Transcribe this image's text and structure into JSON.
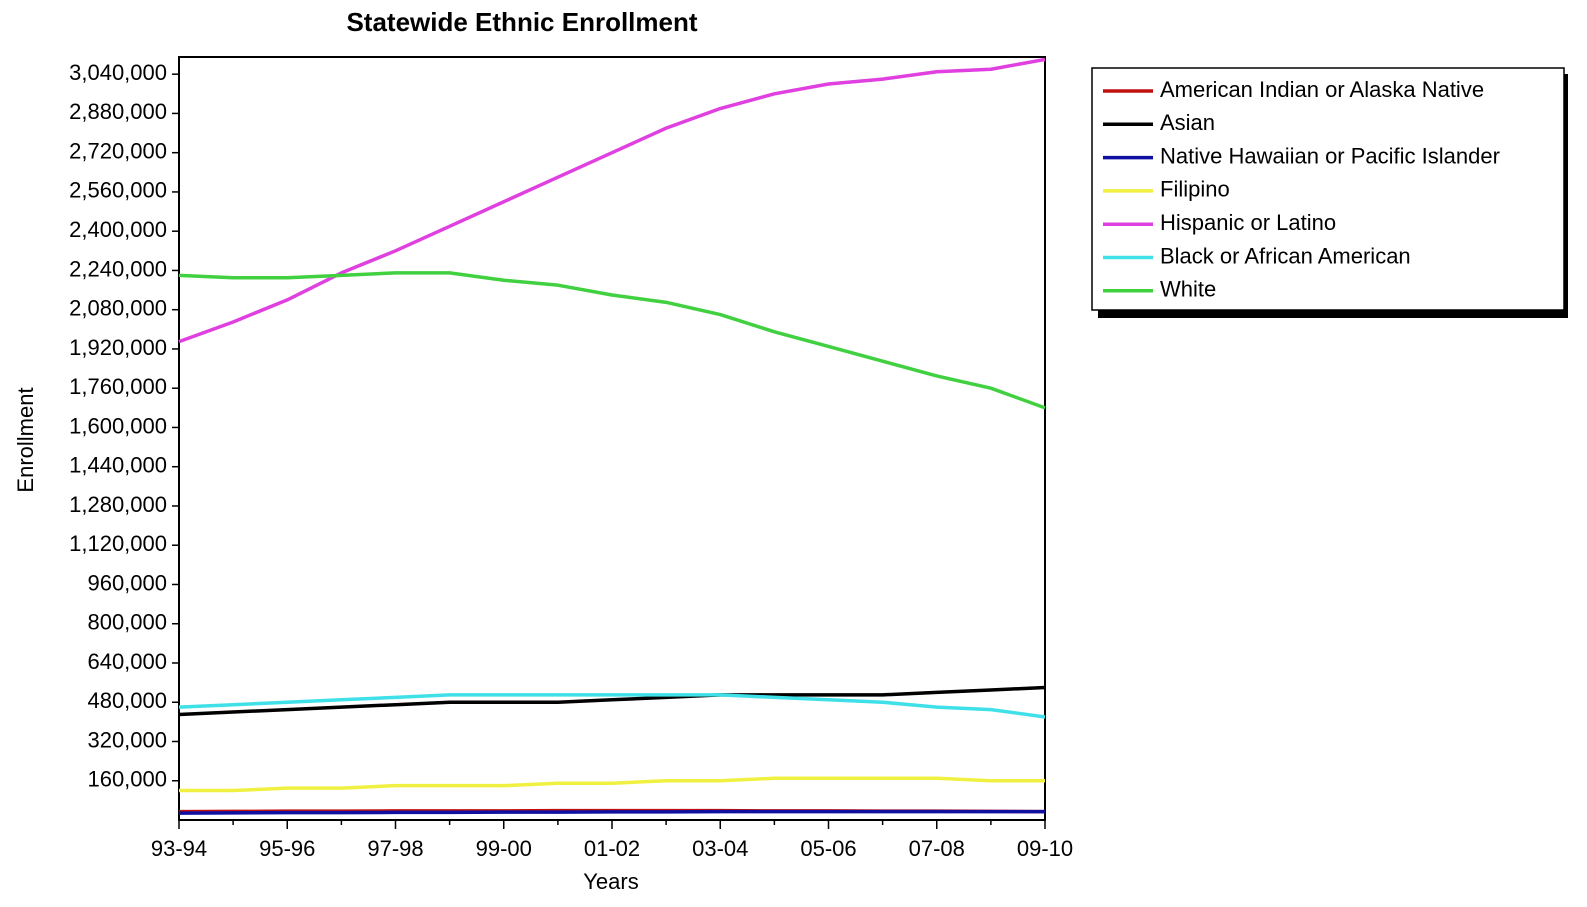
{
  "chart_data": {
    "type": "line",
    "title": "Statewide Ethnic Enrollment",
    "x_label": "Years",
    "y_label": "Enrollment",
    "categories": [
      "93-94",
      null,
      "95-96",
      null,
      "97-98",
      null,
      "99-00",
      null,
      "01-02",
      null,
      "03-04",
      null,
      "05-06",
      null,
      "07-08",
      null,
      "09-10"
    ],
    "ylim": [
      0,
      3110000
    ],
    "yticks": [
      {
        "value": 160000,
        "label": "160,000"
      },
      {
        "value": 320000,
        "label": "320,000"
      },
      {
        "value": 480000,
        "label": "480,000"
      },
      {
        "value": 640000,
        "label": "640,000"
      },
      {
        "value": 800000,
        "label": "800,000"
      },
      {
        "value": 960000,
        "label": "960,000"
      },
      {
        "value": 1120000,
        "label": "1,120,000"
      },
      {
        "value": 1280000,
        "label": "1,280,000"
      },
      {
        "value": 1440000,
        "label": "1,440,000"
      },
      {
        "value": 1600000,
        "label": "1,600,000"
      },
      {
        "value": 1760000,
        "label": "1,760,000"
      },
      {
        "value": 1920000,
        "label": "1,920,000"
      },
      {
        "value": 2080000,
        "label": "2,080,000"
      },
      {
        "value": 2240000,
        "label": "2,240,000"
      },
      {
        "value": 2400000,
        "label": "2,400,000"
      },
      {
        "value": 2560000,
        "label": "2,560,000"
      },
      {
        "value": 2720000,
        "label": "2,720,000"
      },
      {
        "value": 2880000,
        "label": "2,880,000"
      },
      {
        "value": 3040000,
        "label": "3,040,000"
      }
    ],
    "legend": "right",
    "series": [
      {
        "name": "American Indian or Alaska Native",
        "color": "#c01010",
        "values": [
          34000,
          35000,
          36000,
          36000,
          37000,
          37000,
          37000,
          38000,
          38000,
          38000,
          38000,
          37000,
          37000,
          36000,
          36000,
          35000,
          34000
        ]
      },
      {
        "name": "Asian",
        "color": "#000000",
        "values": [
          430000,
          440000,
          450000,
          460000,
          470000,
          480000,
          480000,
          480000,
          490000,
          500000,
          510000,
          510000,
          510000,
          510000,
          520000,
          530000,
          540000
        ]
      },
      {
        "name": "Native Hawaiian or Pacific Islander",
        "color": "#1010a0",
        "values": [
          28000,
          29000,
          30000,
          30000,
          31000,
          31000,
          32000,
          32000,
          33000,
          33000,
          34000,
          34000,
          34000,
          34000,
          34000,
          34000,
          34000
        ]
      },
      {
        "name": "Filipino",
        "color": "#f0f040",
        "values": [
          120000,
          120000,
          130000,
          130000,
          140000,
          140000,
          140000,
          150000,
          150000,
          160000,
          160000,
          170000,
          170000,
          170000,
          170000,
          160000,
          160000
        ]
      },
      {
        "name": "Hispanic or Latino",
        "color": "#e040e0",
        "values": [
          1950000,
          2030000,
          2120000,
          2230000,
          2320000,
          2420000,
          2520000,
          2620000,
          2720000,
          2820000,
          2900000,
          2960000,
          3000000,
          3020000,
          3050000,
          3060000,
          3100000
        ]
      },
      {
        "name": "Black or African American",
        "color": "#40e0e8",
        "values": [
          460000,
          470000,
          480000,
          490000,
          500000,
          510000,
          510000,
          510000,
          510000,
          510000,
          510000,
          500000,
          490000,
          480000,
          460000,
          450000,
          420000
        ]
      },
      {
        "name": "White",
        "color": "#40d040",
        "values": [
          2220000,
          2210000,
          2210000,
          2220000,
          2230000,
          2230000,
          2200000,
          2180000,
          2140000,
          2110000,
          2060000,
          1990000,
          1930000,
          1870000,
          1810000,
          1760000,
          1680000
        ]
      }
    ]
  }
}
